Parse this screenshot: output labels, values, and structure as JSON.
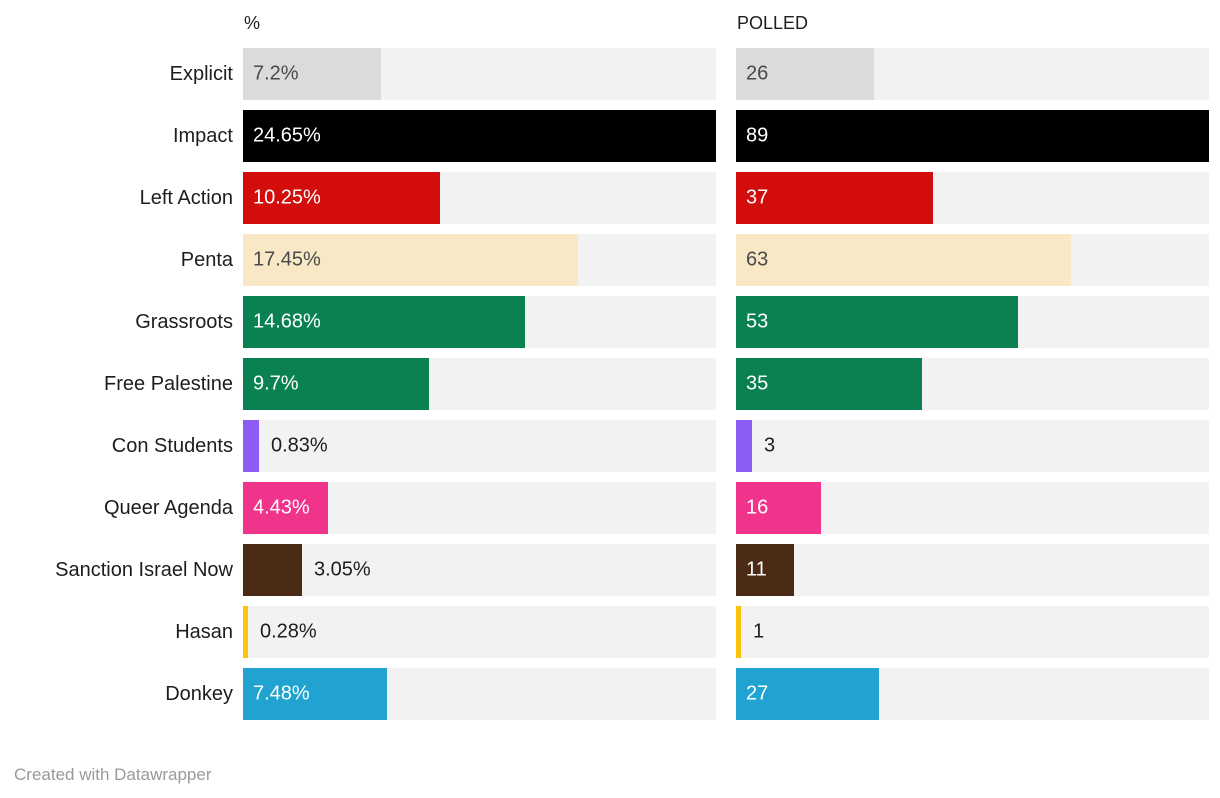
{
  "chart_data": {
    "type": "bar",
    "layout": {
      "orientation": "horizontal",
      "grid": false,
      "legend": "none",
      "bar_scaling": "each column scaled to its max value",
      "track_color": "#f2f2f2"
    },
    "categories": [
      "Explicit",
      "Impact",
      "Left Action",
      "Penta",
      "Grassroots",
      "Free Palestine",
      "Con Students",
      "Queer Agenda",
      "Sanction Israel Now",
      "Hasan",
      "Donkey"
    ],
    "bar_colors": [
      "#dbdbdb",
      "#000000",
      "#d30c0c",
      "#f8e8c5",
      "#098150",
      "#098150",
      "#8c5cf6",
      "#f0338b",
      "#4b2a16",
      "#fdc309",
      "#20a3d0"
    ],
    "series": [
      {
        "name": "%",
        "axis_max": 24.65,
        "values": [
          7.2,
          24.65,
          10.25,
          17.45,
          14.68,
          9.7,
          0.83,
          4.43,
          3.05,
          0.28,
          7.48
        ],
        "labels": [
          "7.2%",
          "24.65%",
          "10.25%",
          "17.45%",
          "14.68%",
          "9.7%",
          "0.83%",
          "4.43%",
          "3.05%",
          "0.28%",
          "7.48%"
        ]
      },
      {
        "name": "POLLED",
        "axis_max": 89,
        "values": [
          26,
          89,
          37,
          63,
          53,
          35,
          3,
          16,
          11,
          1,
          27
        ],
        "labels": [
          "26",
          "89",
          "37",
          "63",
          "53",
          "35",
          "3",
          "16",
          "11",
          "1",
          "27"
        ]
      }
    ]
  },
  "footer": {
    "credit": "Created with Datawrapper"
  }
}
